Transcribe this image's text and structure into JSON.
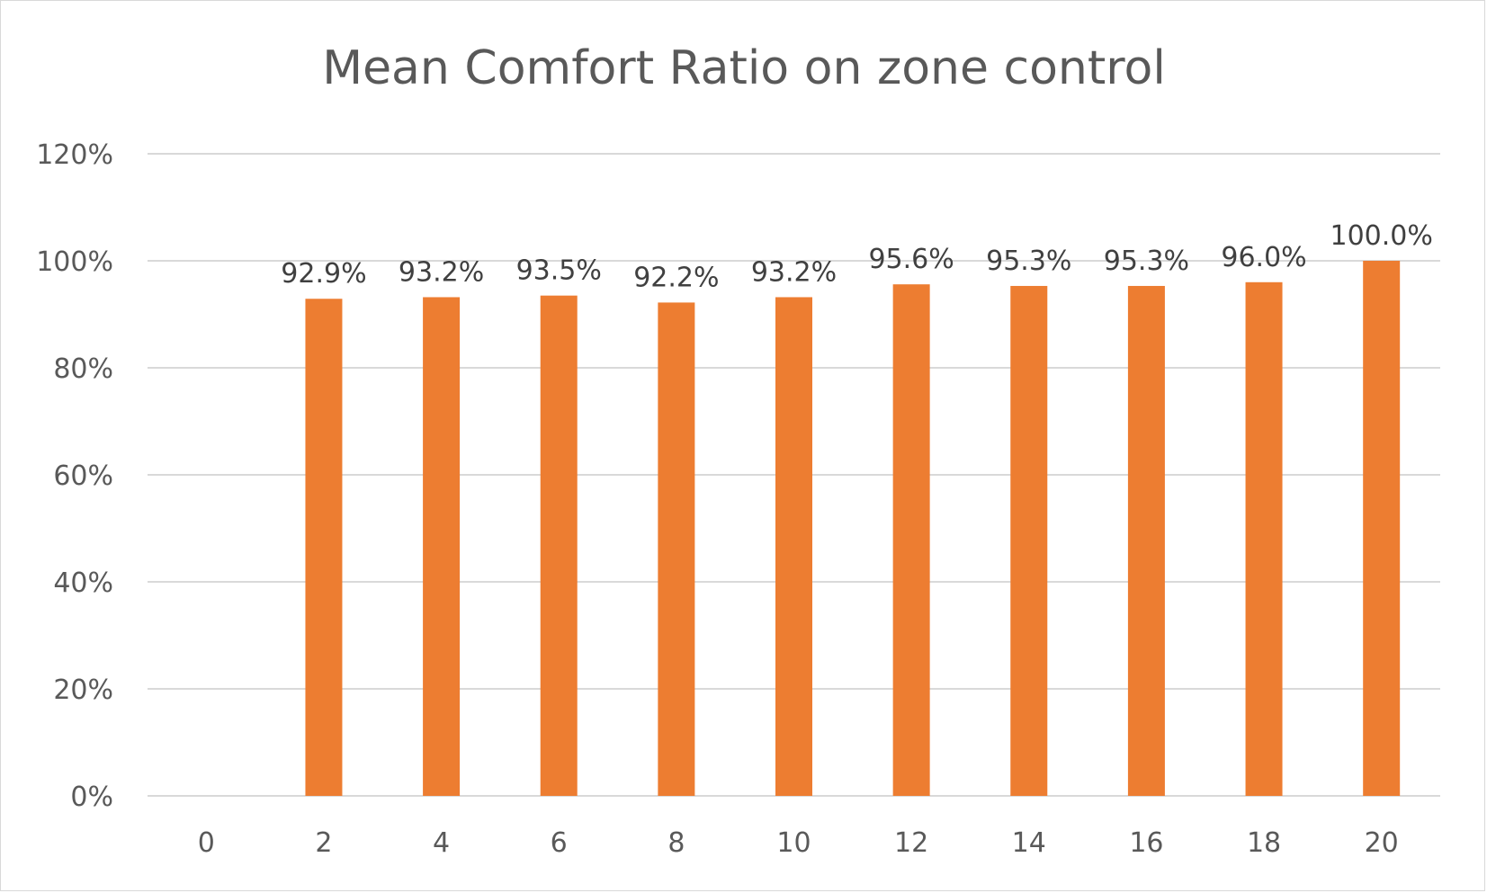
{
  "chart_data": {
    "type": "bar",
    "title": "Mean Comfort Ratio on zone control",
    "categories": [
      "0",
      "2",
      "4",
      "6",
      "8",
      "10",
      "12",
      "14",
      "16",
      "18",
      "20"
    ],
    "values": [
      null,
      92.9,
      93.2,
      93.5,
      92.2,
      93.2,
      95.6,
      95.3,
      95.3,
      96.0,
      100.0
    ],
    "data_labels": [
      "",
      "92.9%",
      "93.2%",
      "93.5%",
      "92.2%",
      "93.2%",
      "95.6%",
      "95.3%",
      "95.3%",
      "96.0%",
      "100.0%"
    ],
    "ylim": [
      0,
      120
    ],
    "yticks": [
      "0%",
      "20%",
      "40%",
      "60%",
      "80%",
      "100%",
      "120%"
    ],
    "ytick_values": [
      0,
      20,
      40,
      60,
      80,
      100,
      120
    ],
    "grid": true,
    "bar_color": "#ED7D31"
  }
}
